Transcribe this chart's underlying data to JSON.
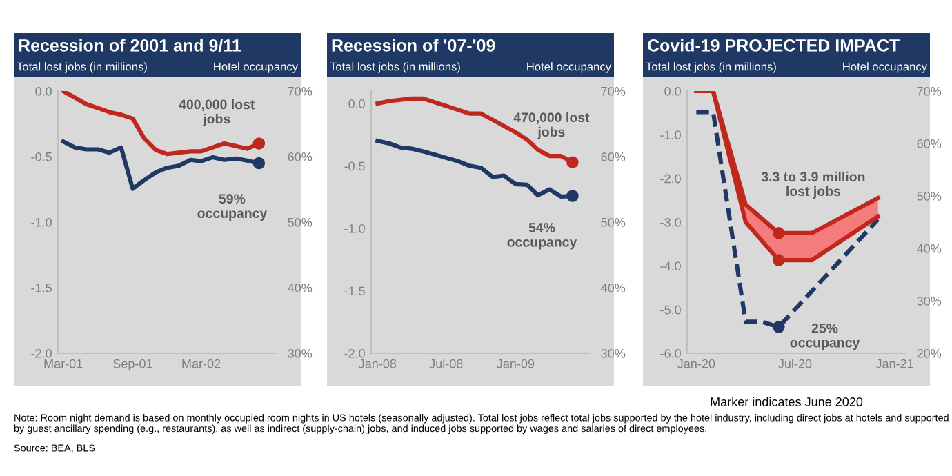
{
  "chart_data": [
    {
      "type": "line",
      "title": "Recession of 2001 and 9/11",
      "ylabel": "Total lost jobs (in millions)",
      "y2label": "Hotel occupancy",
      "xlim": [
        "2001-02-15",
        "2002-09-15"
      ],
      "xticks": [
        {
          "value": "2001-03",
          "label": "Mar-01"
        },
        {
          "value": "2001-09",
          "label": "Sep-01"
        },
        {
          "value": "2002-03",
          "label": "Mar-02"
        }
      ],
      "ylim": [
        -2.0,
        0.0
      ],
      "yticks": [
        {
          "value": 0.0,
          "label": "0.0"
        },
        {
          "value": -0.5,
          "label": "-0.5"
        },
        {
          "value": -1.0,
          "label": "-1.0"
        },
        {
          "value": -1.5,
          "label": "-1.5"
        },
        {
          "value": -2.0,
          "label": "-2.0"
        }
      ],
      "y2lim": [
        30,
        70
      ],
      "y2ticks": [
        {
          "value": 70,
          "label": "70%"
        },
        {
          "value": 60,
          "label": "60%"
        },
        {
          "value": 50,
          "label": "50%"
        },
        {
          "value": 40,
          "label": "40%"
        },
        {
          "value": 30,
          "label": "30%"
        }
      ],
      "x": [
        "2001-03",
        "2001-04",
        "2001-05",
        "2001-06",
        "2001-07",
        "2001-08",
        "2001-09",
        "2001-10",
        "2001-11",
        "2001-12",
        "2002-01",
        "2002-02",
        "2002-03",
        "2002-04",
        "2002-05",
        "2002-06",
        "2002-07",
        "2002-08"
      ],
      "series": [
        {
          "color": "#c0281e",
          "values": [
            0.0,
            -0.05,
            -0.1,
            -0.13,
            -0.16,
            -0.18,
            -0.21,
            -0.36,
            -0.45,
            -0.48,
            -0.47,
            -0.46,
            -0.46,
            -0.43,
            -0.4,
            -0.42,
            -0.44,
            -0.4
          ]
        },
        {
          "color": "#1f3864",
          "axis": "y2",
          "values": [
            62.3,
            61.4,
            61.1,
            61.1,
            60.6,
            61.4,
            55.1,
            56.4,
            57.6,
            58.3,
            58.6,
            59.5,
            59.3,
            59.9,
            59.5,
            59.7,
            59.4,
            59.0
          ]
        },
        {
          "type": "scatter",
          "color": "#c0281e",
          "x": [
            "2002-08"
          ],
          "values": [
            -0.4
          ]
        },
        {
          "type": "scatter",
          "color": "#1f3864",
          "axis": "y2",
          "x": [
            "2002-08"
          ],
          "values": [
            59.0
          ]
        }
      ],
      "annotations": [
        {
          "text": "400,000 lost\njobs",
          "x": "2002-08",
          "y": -0.4
        },
        {
          "text": "59%\noccupancy",
          "x": "2002-08",
          "y": -0.55
        },
        "Note: Room night demand is based on monthly occupied room nights in US hotels (seasonally adjusted). Total lost jobs reflect total jobs supported by the hotel industry, including direct jobs at hotels and supported by guest ancillary spending (e.g., restaurants), as well as indirect (supply-chain) jobs, and induced jobs supported by wages and salaries of direct employees.",
        "Source: BEA, BLS"
      ],
      "grid": false
    },
    {
      "type": "line",
      "title": "Recession of '07-'09",
      "ylabel": "Total lost jobs (in millions)",
      "y2label": "Hotel occupancy",
      "xlim": [
        "2007-12-15",
        "2009-07-15"
      ],
      "xticks": [
        {
          "value": "2008-01",
          "label": "Jan-08"
        },
        {
          "value": "2008-07",
          "label": "Jul-08"
        },
        {
          "value": "2009-01",
          "label": "Jan-09"
        }
      ],
      "ylim": [
        -2.0,
        0.1
      ],
      "yticks": [
        {
          "value": 0.0,
          "label": "0.0"
        },
        {
          "value": -0.5,
          "label": "-0.5"
        },
        {
          "value": -1.0,
          "label": "-1.0"
        },
        {
          "value": -1.5,
          "label": "-1.5"
        },
        {
          "value": -2.0,
          "label": "-2.0"
        }
      ],
      "y2lim": [
        30,
        70
      ],
      "y2ticks": [
        {
          "value": 70,
          "label": "70%"
        },
        {
          "value": 60,
          "label": "60%"
        },
        {
          "value": 50,
          "label": "50%"
        },
        {
          "value": 40,
          "label": "40%"
        },
        {
          "value": 30,
          "label": "30%"
        }
      ],
      "x": [
        "2008-01",
        "2008-02",
        "2008-03",
        "2008-04",
        "2008-05",
        "2008-06",
        "2008-07",
        "2008-08",
        "2008-09",
        "2008-10",
        "2008-11",
        "2008-12",
        "2009-01",
        "2009-02",
        "2009-03",
        "2009-04",
        "2009-05",
        "2009-06"
      ],
      "series": [
        {
          "color": "#c0281e",
          "values": [
            0.0,
            0.02,
            0.03,
            0.04,
            0.04,
            0.01,
            -0.02,
            -0.05,
            -0.08,
            -0.08,
            -0.13,
            -0.18,
            -0.23,
            -0.29,
            -0.37,
            -0.42,
            -0.42,
            -0.47
          ]
        },
        {
          "color": "#1f3864",
          "axis": "y2",
          "values": [
            62.4,
            62.0,
            61.4,
            61.2,
            60.8,
            60.3,
            59.8,
            59.3,
            58.6,
            58.3,
            56.9,
            57.1,
            55.8,
            55.7,
            54.1,
            55.0,
            53.9,
            54.0
          ]
        },
        {
          "type": "scatter",
          "color": "#c0281e",
          "x": [
            "2009-06"
          ],
          "values": [
            -0.47
          ]
        },
        {
          "type": "scatter",
          "color": "#1f3864",
          "axis": "y2",
          "x": [
            "2009-06"
          ],
          "values": [
            54.0
          ]
        }
      ],
      "annotations": [
        {
          "text": "470,000 lost\njobs",
          "x": "2009-06",
          "y": -0.47
        },
        {
          "text": "54%\noccupancy",
          "x": "2009-06",
          "y": -0.8
        }
      ],
      "grid": false
    },
    {
      "type": "line",
      "title": "Covid-19 PROJECTED IMPACT",
      "ylabel": "Total lost jobs (in millions)",
      "y2label": "Hotel occupancy",
      "xlim": [
        "2019-12-15",
        "2021-01-20"
      ],
      "xticks": [
        {
          "value": "2020-01",
          "label": "Jan-20"
        },
        {
          "value": "2020-07",
          "label": "Jul-20"
        },
        {
          "value": "2021-01",
          "label": "Jan-21"
        }
      ],
      "ylim": [
        -6.0,
        0.0
      ],
      "yticks": [
        {
          "value": 0.0,
          "label": "0.0"
        },
        {
          "value": -1.0,
          "label": "-1.0"
        },
        {
          "value": -2.0,
          "label": "-2.0"
        },
        {
          "value": -3.0,
          "label": "-3.0"
        },
        {
          "value": -4.0,
          "label": "-4.0"
        },
        {
          "value": -5.0,
          "label": "-5.0"
        },
        {
          "value": -6.0,
          "label": "-6.0"
        }
      ],
      "y2lim": [
        20,
        70
      ],
      "y2ticks": [
        {
          "value": 70,
          "label": "70%"
        },
        {
          "value": 60,
          "label": "60%"
        },
        {
          "value": 50,
          "label": "50%"
        },
        {
          "value": 40,
          "label": "40%"
        },
        {
          "value": 30,
          "label": "30%"
        },
        {
          "value": 20,
          "label": "20%"
        }
      ],
      "x": [
        "2020-01",
        "2020-02",
        "2020-04",
        "2020-06",
        "2020-08",
        "2020-12"
      ],
      "series": [
        {
          "color": "#c0281e",
          "values": [
            0.0,
            0.0,
            -2.6,
            -3.25,
            -3.25,
            -2.45
          ],
          "lower": [
            0.0,
            0.0,
            -3.0,
            -3.87,
            -3.87,
            -2.87
          ],
          "upper": [
            0.0,
            0.0,
            -2.6,
            -3.25,
            -3.25,
            -2.45
          ]
        },
        {
          "color": "#c0281e",
          "values": [
            0.0,
            0.0,
            -3.0,
            -3.87,
            -3.87,
            -2.87
          ]
        },
        {
          "color": "#1f3864",
          "axis": "y2",
          "line_style": "dashed",
          "x": [
            "2020-01",
            "2020-02",
            "2020-04",
            "2020-05",
            "2020-06",
            "2020-12"
          ],
          "values": [
            66.0,
            66.0,
            26.0,
            26.0,
            25.0,
            45.5
          ]
        },
        {
          "type": "scatter",
          "color": "#c0281e",
          "x": [
            "2020-06",
            "2020-06"
          ],
          "values": [
            -3.25,
            -3.87
          ]
        },
        {
          "type": "scatter",
          "color": "#1f3864",
          "axis": "y2",
          "x": [
            "2020-06"
          ],
          "values": [
            25.0
          ]
        }
      ],
      "annotations": [
        {
          "text": "3.3 to 3.9 million\nlost jobs",
          "x": "2020-06",
          "y": -3.25
        },
        {
          "text": "25%\noccupancy",
          "x": "2020-06",
          "y": -5.4
        },
        "Marker indicates June 2020"
      ],
      "grid": false
    }
  ]
}
